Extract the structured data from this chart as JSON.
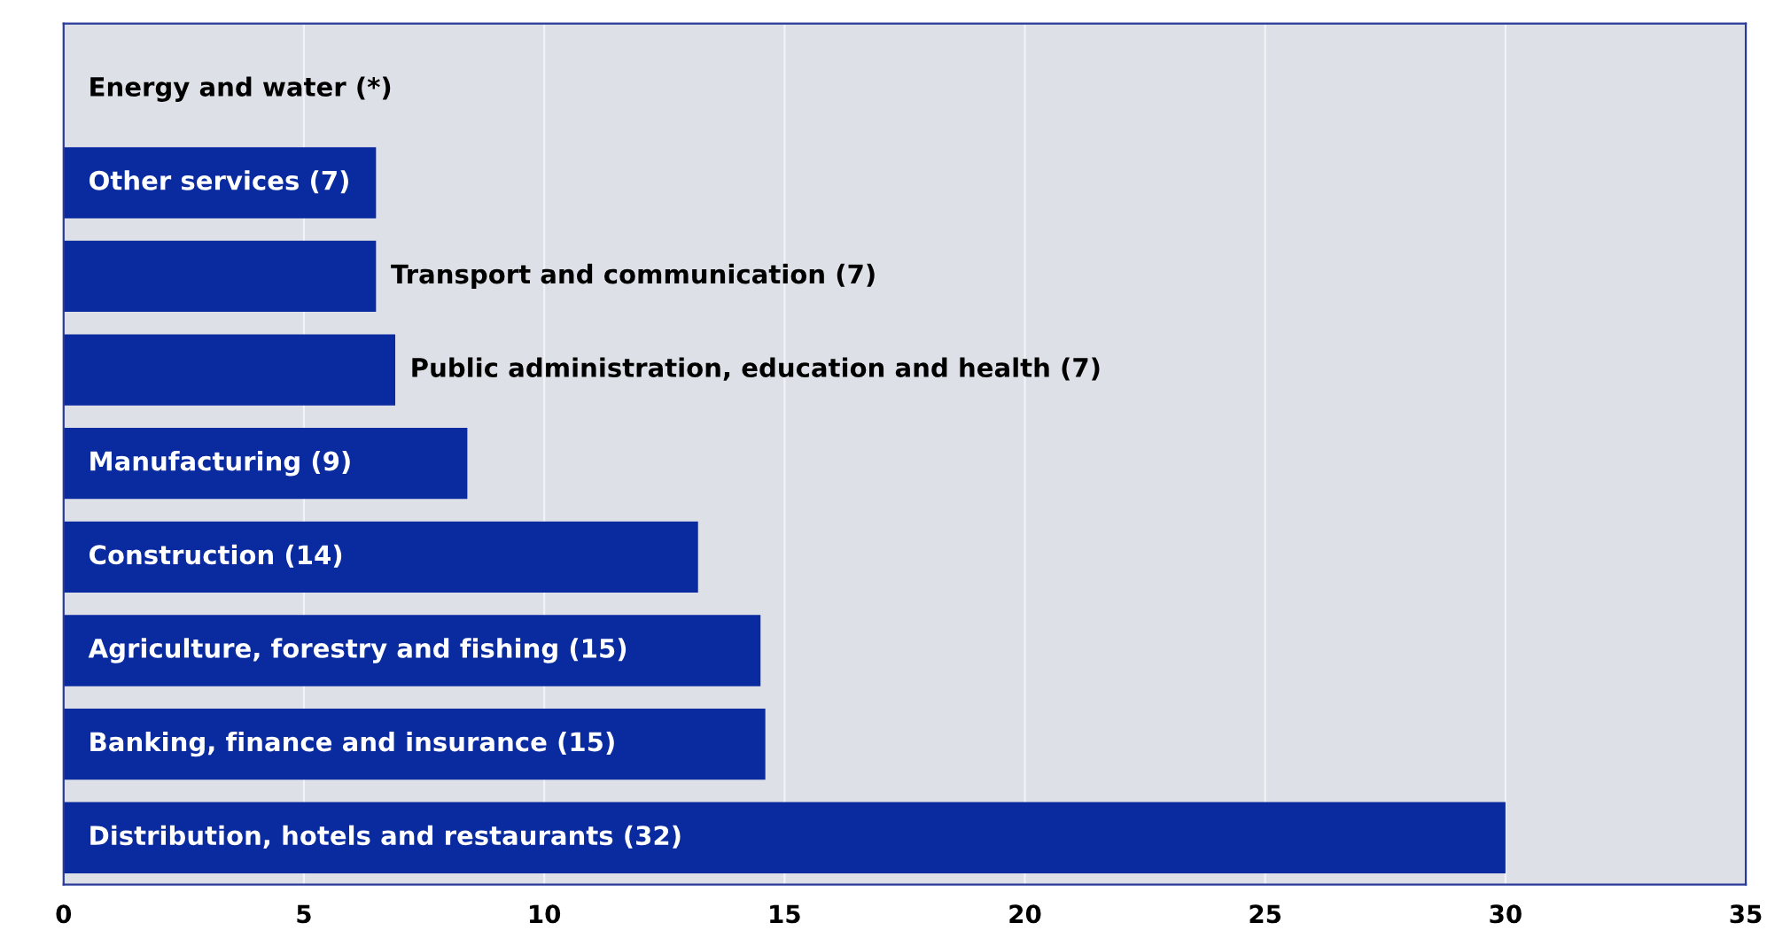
{
  "chart_data": {
    "type": "bar",
    "orientation": "horizontal",
    "categories": [
      "Energy and water (*)",
      "Other services (7)",
      "Transport and communication (7)",
      "Public administration, education and health (7)",
      "Manufacturing (9)",
      "Construction (14)",
      "Agriculture, forestry and fishing (15)",
      "Banking, finance and insurance (15)",
      "Distribution, hotels and restaurants (32)"
    ],
    "values": [
      0,
      6.5,
      6.5,
      6.9,
      8.4,
      13.2,
      14.5,
      14.6,
      30
    ],
    "color": "#0a2aa0",
    "xlim": [
      0,
      35
    ],
    "xticks": [
      0,
      5,
      10,
      15,
      20,
      25,
      30,
      35
    ],
    "tick_labels": "x",
    "grid": "x",
    "legend": false
  }
}
